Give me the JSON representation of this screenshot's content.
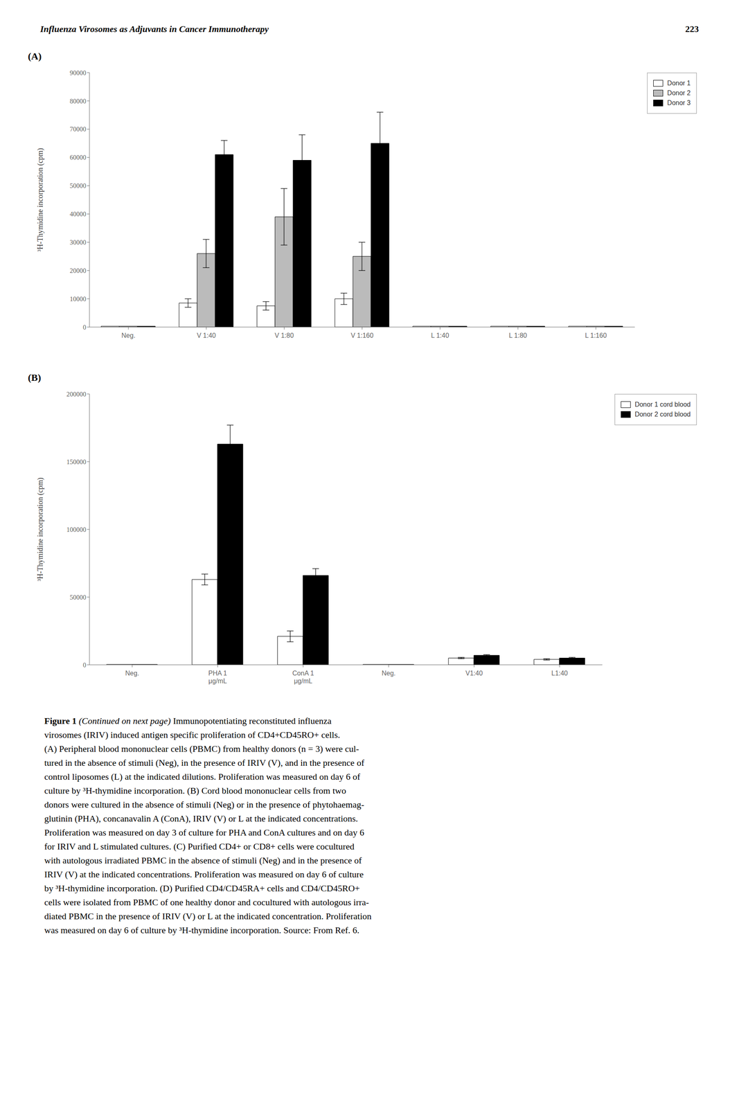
{
  "chart_data": [
    {
      "type": "bar",
      "title": "(A)",
      "annotations": [
        "Influenza Virosomes as Adjuvants in Cancer Immunotherapy",
        "223"
      ],
      "ylabel": "³H-Thymidine incorporation (cpm)",
      "categories": [
        "Neg.",
        "V 1:40",
        "V 1:80",
        "V 1:160",
        "L 1:40",
        "L 1:80",
        "L 1:160"
      ],
      "series": [
        {
          "name": "Donor 1",
          "color": "#FFFFFF",
          "values": [
            300,
            8500,
            7500,
            10000,
            300,
            300,
            300
          ],
          "errors": [
            0,
            1500,
            1500,
            2000,
            0,
            0,
            0
          ]
        },
        {
          "name": "Donor 2",
          "color": "#BBBBBB",
          "values": [
            300,
            26000,
            39000,
            25000,
            300,
            300,
            300
          ],
          "errors": [
            0,
            5000,
            10000,
            5000,
            0,
            0,
            0
          ]
        },
        {
          "name": "Donor 3",
          "color": "#000000",
          "values": [
            300,
            61000,
            59000,
            65000,
            300,
            300,
            300
          ],
          "errors": [
            0,
            5000,
            9000,
            11000,
            0,
            0,
            0
          ]
        }
      ],
      "ylim": [
        0,
        90000
      ],
      "yticks": [
        0,
        10000,
        20000,
        30000,
        40000,
        50000,
        60000,
        70000,
        80000,
        90000
      ],
      "grid": false,
      "legend": "right"
    },
    {
      "type": "bar",
      "title": "(B)",
      "annotations": [
        "Figure 1",
        "(Continued on next page)",
        "Immunopotentiating reconstituted influenza",
        "virosomes (IRIV) induced antigen specific proliferation of CD4+CD45RO+ cells.",
        "(A) Peripheral blood mononuclear cells (PBMC) from healthy donors (n = 3) were cul-",
        "tured in the absence of stimuli (Neg), in the presence of IRIV (V), and in the presence of",
        "control liposomes (L) at the indicated dilutions. Proliferation was measured on day 6 of",
        "culture by ³H-thymidine incorporation. (B) Cord blood mononuclear cells from two",
        "donors were cultured in the absence of stimuli (Neg) or in the presence of phytohaemag-",
        "glutinin (PHA), concanavalin A (ConA), IRIV (V) or L at the indicated concentrations.",
        "Proliferation was measured on day 3 of culture for PHA and ConA cultures and on day 6",
        "for IRIV and L stimulated cultures. (C) Purified CD4+ or CD8+ cells were cocultured",
        "with autologous irradiated PBMC in the absence of stimuli (Neg) and in the presence of",
        "IRIV (V) at the indicated concentrations. Proliferation was measured on day 6 of culture",
        "by ³H-thymidine incorporation. (D) Purified CD4/CD45RA+ cells and CD4/CD45RO+",
        "cells were isolated from PBMC of one healthy donor and cocultured with autologous irra-",
        "diated PBMC in the presence of IRIV (V) or L at the indicated concentration. Proliferation",
        "was measured on day 6 of culture by ³H-thymidine incorporation. Source: From Ref. 6."
      ],
      "ylabel": "³H-Thymidine incorporation (cpm)",
      "categories": [
        "Neg.",
        "PHA 1\nμg/mL",
        "ConA 1\nμg/mL",
        "Neg.",
        "V1:40",
        "L1:40"
      ],
      "series": [
        {
          "name": "Donor 1 cord blood",
          "color": "#FFFFFF",
          "values": [
            300,
            63000,
            21000,
            300,
            5000,
            4000
          ],
          "errors": [
            0,
            4000,
            4000,
            0,
            500,
            500
          ]
        },
        {
          "name": "Donor 2 cord blood",
          "color": "#000000",
          "values": [
            300,
            163000,
            66000,
            300,
            7000,
            5000
          ],
          "errors": [
            0,
            14000,
            5000,
            0,
            500,
            500
          ]
        }
      ],
      "ylim": [
        0,
        200000
      ],
      "yticks": [
        0,
        50000,
        100000,
        150000,
        200000
      ],
      "grid": false,
      "legend": "right"
    }
  ]
}
